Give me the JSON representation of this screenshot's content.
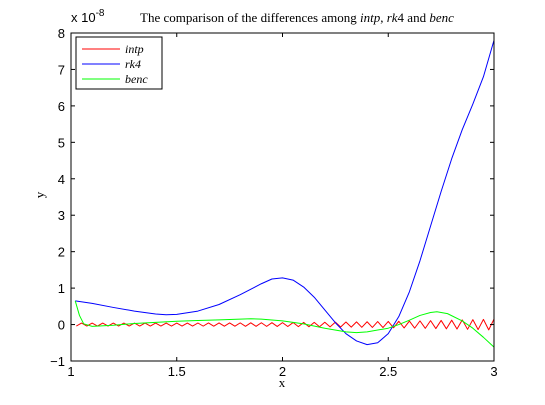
{
  "chart_data": {
    "type": "line",
    "title": "The comparison of the differences among intp, rk4 and benc",
    "title_parts": {
      "prefix": "The comparison of the differences among ",
      "name1": "intp",
      "sep1": ", ",
      "name2": "rk",
      "name2_digit": "4",
      "sep2": " and ",
      "name3": "benc"
    },
    "exponent_label": "x 10",
    "exponent_value": "-8",
    "xlabel": "x",
    "ylabel": "y",
    "xlim": [
      1,
      3
    ],
    "ylim": [
      -1,
      8
    ],
    "xticks": [
      1,
      1.5,
      2,
      2.5,
      3
    ],
    "xtick_labels": [
      "1",
      "1.5",
      "2",
      "2.5",
      "3"
    ],
    "yticks": [
      -1,
      0,
      1,
      2,
      3,
      4,
      5,
      6,
      7,
      8
    ],
    "ytick_labels": [
      "−1",
      "0",
      "1",
      "2",
      "3",
      "4",
      "5",
      "6",
      "7",
      "8"
    ],
    "grid": false,
    "legend_position": "top-left",
    "legend": [
      {
        "label": "intp",
        "color": "#ff0000"
      },
      {
        "label": "rk4",
        "color": "#0000ff"
      },
      {
        "label": "benc",
        "color": "#00ff00"
      }
    ],
    "series": [
      {
        "name": "intp",
        "color": "#ff0000",
        "pattern": "zigzag",
        "x_start": 1.025,
        "x_end": 3.0,
        "period": 0.05,
        "center": 0.0,
        "amplitude_start": 0.08,
        "amplitude_end": 0.3
      },
      {
        "name": "rk4",
        "color": "#0000ff",
        "points": [
          [
            1.02,
            0.65
          ],
          [
            1.1,
            0.58
          ],
          [
            1.2,
            0.47
          ],
          [
            1.3,
            0.37
          ],
          [
            1.4,
            0.29
          ],
          [
            1.45,
            0.27
          ],
          [
            1.5,
            0.28
          ],
          [
            1.6,
            0.37
          ],
          [
            1.7,
            0.55
          ],
          [
            1.8,
            0.82
          ],
          [
            1.9,
            1.12
          ],
          [
            1.95,
            1.25
          ],
          [
            2.0,
            1.28
          ],
          [
            2.05,
            1.22
          ],
          [
            2.1,
            1.03
          ],
          [
            2.15,
            0.75
          ],
          [
            2.2,
            0.4
          ],
          [
            2.25,
            0.05
          ],
          [
            2.3,
            -0.25
          ],
          [
            2.35,
            -0.45
          ],
          [
            2.4,
            -0.55
          ],
          [
            2.45,
            -0.5
          ],
          [
            2.5,
            -0.25
          ],
          [
            2.55,
            0.22
          ],
          [
            2.6,
            0.9
          ],
          [
            2.65,
            1.75
          ],
          [
            2.7,
            2.7
          ],
          [
            2.75,
            3.65
          ],
          [
            2.8,
            4.55
          ],
          [
            2.85,
            5.35
          ],
          [
            2.9,
            6.05
          ],
          [
            2.95,
            6.8
          ],
          [
            3.0,
            7.8
          ]
        ]
      },
      {
        "name": "benc",
        "color": "#00ff00",
        "points": [
          [
            1.02,
            0.65
          ],
          [
            1.04,
            0.25
          ],
          [
            1.06,
            0.02
          ],
          [
            1.1,
            -0.05
          ],
          [
            1.2,
            -0.02
          ],
          [
            1.3,
            0.03
          ],
          [
            1.4,
            0.06
          ],
          [
            1.5,
            0.09
          ],
          [
            1.6,
            0.11
          ],
          [
            1.7,
            0.13
          ],
          [
            1.8,
            0.15
          ],
          [
            1.85,
            0.16
          ],
          [
            1.9,
            0.15
          ],
          [
            2.0,
            0.1
          ],
          [
            2.1,
            0.02
          ],
          [
            2.2,
            -0.1
          ],
          [
            2.3,
            -0.2
          ],
          [
            2.35,
            -0.22
          ],
          [
            2.4,
            -0.2
          ],
          [
            2.5,
            -0.1
          ],
          [
            2.55,
            0.0
          ],
          [
            2.6,
            0.12
          ],
          [
            2.65,
            0.25
          ],
          [
            2.7,
            0.33
          ],
          [
            2.73,
            0.35
          ],
          [
            2.78,
            0.3
          ],
          [
            2.85,
            0.1
          ],
          [
            2.9,
            -0.1
          ],
          [
            2.95,
            -0.35
          ],
          [
            3.0,
            -0.62
          ]
        ]
      }
    ]
  }
}
